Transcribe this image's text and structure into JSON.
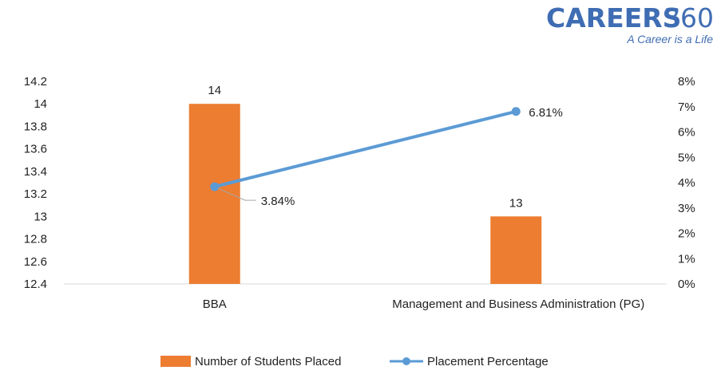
{
  "brand": {
    "name": "CAREERS",
    "number": "360",
    "tagline": "A Career is a Life",
    "color": "#3f6db3"
  },
  "chart_data": {
    "type": "bar",
    "categories": [
      "BBA",
      "Management and Business Administration (PG)"
    ],
    "series": [
      {
        "name": "Number of Students Placed",
        "type": "bar",
        "axis": "left",
        "values": [
          14,
          13
        ],
        "labels": [
          "14",
          "13"
        ],
        "color": "#ed7d31"
      },
      {
        "name": "Placement Percentage",
        "type": "line",
        "axis": "right",
        "values": [
          3.84,
          6.81
        ],
        "labels": [
          "3.84%",
          "6.81%"
        ],
        "color": "#5b9bd5"
      }
    ],
    "y_left": {
      "min": 12.4,
      "max": 14.2,
      "ticks": [
        "12.4",
        "12.6",
        "12.8",
        "13",
        "13.2",
        "13.4",
        "13.6",
        "13.8",
        "14",
        "14.2"
      ]
    },
    "y_right": {
      "min": 0,
      "max": 8,
      "ticks": [
        "0%",
        "1%",
        "2%",
        "3%",
        "4%",
        "5%",
        "6%",
        "7%",
        "8%"
      ]
    },
    "grid": false,
    "legend_position": "bottom"
  }
}
